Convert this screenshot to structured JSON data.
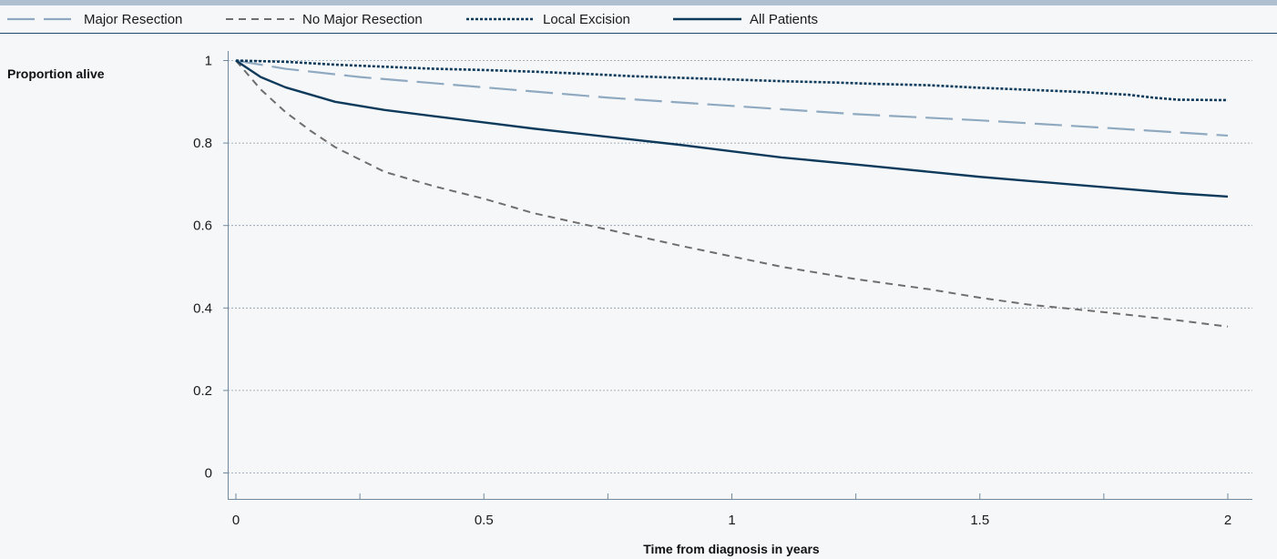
{
  "chart_data": {
    "type": "line",
    "title": "",
    "xlabel": "Time from diagnosis in years",
    "ylabel": "Proportion alive",
    "xlim": [
      0,
      2
    ],
    "ylim": [
      0,
      1
    ],
    "x_ticks": [
      "0",
      "0.5",
      "1",
      "1.5",
      "2"
    ],
    "x_tick_values": [
      0,
      0.5,
      1,
      1.5,
      2
    ],
    "y_ticks": [
      "0",
      "0.2",
      "0.4",
      "0.6",
      "0.8",
      "1"
    ],
    "y_tick_values": [
      0,
      0.2,
      0.4,
      0.6,
      0.8,
      1
    ],
    "grid": "horizontal-dotted",
    "legend_position": "top",
    "series": [
      {
        "name": "Major Resection",
        "color": "#8fa9c0",
        "style": "long-dash",
        "x": [
          0,
          0.1,
          0.25,
          0.5,
          0.75,
          1.0,
          1.25,
          1.5,
          1.75,
          2.0
        ],
        "y": [
          1.0,
          0.98,
          0.96,
          0.935,
          0.91,
          0.89,
          0.87,
          0.855,
          0.837,
          0.818
        ]
      },
      {
        "name": "No Major Resection",
        "color": "#6e6e6e",
        "style": "dash",
        "x": [
          0,
          0.05,
          0.1,
          0.15,
          0.2,
          0.25,
          0.3,
          0.4,
          0.5,
          0.6,
          0.75,
          0.9,
          1.0,
          1.1,
          1.25,
          1.4,
          1.5,
          1.6,
          1.75,
          1.9,
          2.0
        ],
        "y": [
          1.0,
          0.93,
          0.875,
          0.83,
          0.79,
          0.76,
          0.73,
          0.695,
          0.665,
          0.63,
          0.59,
          0.55,
          0.525,
          0.5,
          0.47,
          0.445,
          0.425,
          0.408,
          0.39,
          0.37,
          0.355
        ]
      },
      {
        "name": "Local Excision",
        "color": "#0e3a5c",
        "style": "dotted",
        "x": [
          0,
          0.1,
          0.2,
          0.3,
          0.4,
          0.5,
          0.6,
          0.7,
          0.8,
          0.9,
          1.0,
          1.1,
          1.2,
          1.3,
          1.4,
          1.5,
          1.6,
          1.7,
          1.8,
          1.85,
          1.9,
          2.0
        ],
        "y": [
          1.0,
          0.997,
          0.99,
          0.985,
          0.98,
          0.977,
          0.973,
          0.968,
          0.962,
          0.958,
          0.954,
          0.95,
          0.947,
          0.943,
          0.94,
          0.934,
          0.929,
          0.924,
          0.917,
          0.91,
          0.905,
          0.904
        ]
      },
      {
        "name": "All Patients",
        "color": "#0e3a5c",
        "style": "solid",
        "x": [
          0,
          0.05,
          0.1,
          0.2,
          0.3,
          0.4,
          0.5,
          0.6,
          0.75,
          0.9,
          1.0,
          1.1,
          1.25,
          1.4,
          1.5,
          1.6,
          1.75,
          1.9,
          2.0
        ],
        "y": [
          1.0,
          0.96,
          0.935,
          0.9,
          0.88,
          0.865,
          0.85,
          0.835,
          0.815,
          0.795,
          0.78,
          0.765,
          0.748,
          0.73,
          0.718,
          0.708,
          0.693,
          0.678,
          0.67
        ]
      }
    ]
  }
}
